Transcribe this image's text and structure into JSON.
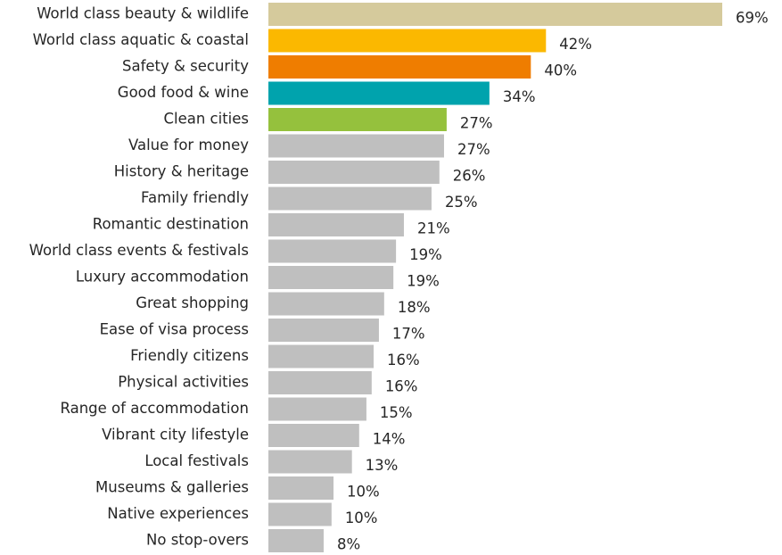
{
  "chart_data": {
    "type": "bar",
    "orientation": "horizontal",
    "categories": [
      "World class beauty & wildlife",
      "World class aquatic & coastal",
      "Safety & security",
      "Good food & wine",
      "Clean cities",
      "Value for money",
      "History & heritage",
      "Family friendly",
      "Romantic destination",
      "World class events & festivals",
      "Luxury accommodation",
      "Great shopping",
      "Ease of visa process",
      "Friendly citizens",
      "Physical activities",
      "Range of accommodation",
      "Vibrant city lifestyle",
      "Local festivals",
      "Museums & galleries",
      "Native experiences",
      "No stop-overs"
    ],
    "values": [
      69,
      42.2,
      39.9,
      33.6,
      27.1,
      26.7,
      26.0,
      24.8,
      20.6,
      19.4,
      19.0,
      17.6,
      16.8,
      16.0,
      15.7,
      14.9,
      13.8,
      12.7,
      9.9,
      9.6,
      8.4
    ],
    "value_labels": [
      "69%",
      "42%",
      "40%",
      "34%",
      "27%",
      "27%",
      "26%",
      "25%",
      "21%",
      "19%",
      "19%",
      "18%",
      "17%",
      "16%",
      "16%",
      "15%",
      "14%",
      "13%",
      "10%",
      "10%",
      "8%"
    ],
    "colors": [
      "#d5ca9c",
      "#fbb800",
      "#ef7d00",
      "#00a3ad",
      "#95c13d",
      "#bfbfbf",
      "#bfbfbf",
      "#bfbfbf",
      "#bfbfbf",
      "#bfbfbf",
      "#bfbfbf",
      "#bfbfbf",
      "#bfbfbf",
      "#bfbfbf",
      "#bfbfbf",
      "#bfbfbf",
      "#bfbfbf",
      "#bfbfbf",
      "#bfbfbf",
      "#bfbfbf",
      "#bfbfbf"
    ]
  }
}
